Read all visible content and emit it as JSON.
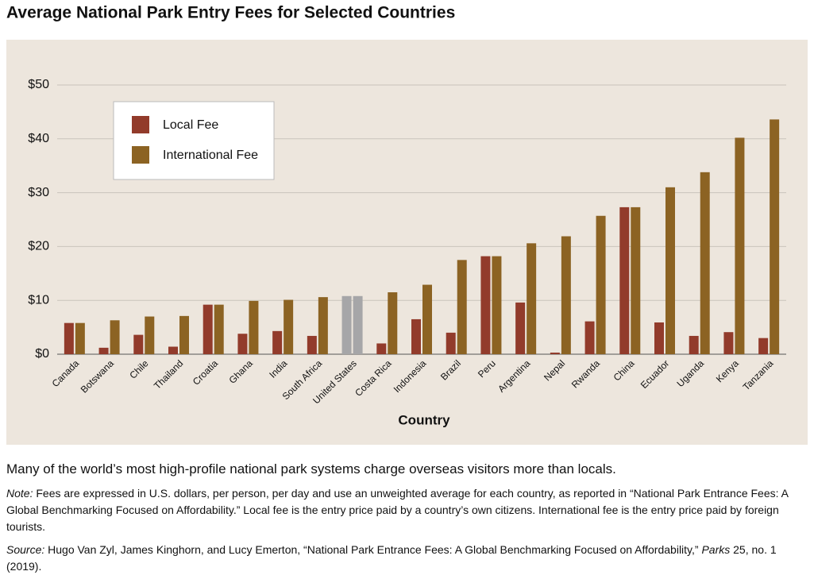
{
  "chart_data": {
    "type": "bar",
    "title": "Average National Park Entry Fees for Selected Countries",
    "x_label": "Country",
    "categories": [
      "Canada",
      "Botswana",
      "Chile",
      "Thailand",
      "Croatia",
      "Ghana",
      "India",
      "South Africa",
      "United States",
      "Costa Rica",
      "Indonesia",
      "Brazil",
      "Peru",
      "Argentina",
      "Nepal",
      "Rwanda",
      "China",
      "Ecuador",
      "Uganda",
      "Kenya",
      "Tanzania"
    ],
    "series": [
      {
        "name": "Local Fee",
        "color": "#923b2b",
        "colors": [
          "#923b2b",
          "#923b2b",
          "#923b2b",
          "#923b2b",
          "#923b2b",
          "#923b2b",
          "#923b2b",
          "#923b2b",
          "#a6a6a8",
          "#923b2b",
          "#923b2b",
          "#923b2b",
          "#923b2b",
          "#923b2b",
          "#923b2b",
          "#923b2b",
          "#923b2b",
          "#923b2b",
          "#923b2b",
          "#923b2b",
          "#923b2b"
        ],
        "values": [
          5.8,
          1.2,
          3.6,
          1.4,
          9.2,
          3.8,
          4.3,
          3.4,
          10.8,
          2.0,
          6.5,
          4.0,
          18.2,
          9.6,
          0.3,
          6.1,
          27.3,
          5.9,
          3.4,
          4.1,
          3.0
        ]
      },
      {
        "name": "International Fee",
        "color": "#8c6323",
        "colors": [
          "#8c6323",
          "#8c6323",
          "#8c6323",
          "#8c6323",
          "#8c6323",
          "#8c6323",
          "#8c6323",
          "#8c6323",
          "#a6a6a8",
          "#8c6323",
          "#8c6323",
          "#8c6323",
          "#8c6323",
          "#8c6323",
          "#8c6323",
          "#8c6323",
          "#8c6323",
          "#8c6323",
          "#8c6323",
          "#8c6323",
          "#8c6323"
        ],
        "values": [
          5.8,
          6.3,
          7.0,
          7.1,
          9.2,
          9.9,
          10.1,
          10.6,
          10.8,
          11.5,
          12.9,
          17.5,
          18.2,
          20.6,
          21.9,
          25.7,
          27.3,
          31.0,
          33.8,
          40.2,
          43.6
        ]
      }
    ],
    "ylim": [
      0,
      50
    ],
    "yticks": [
      {
        "value": 0,
        "label": "$0"
      },
      {
        "value": 10,
        "label": "$10"
      },
      {
        "value": 20,
        "label": "$20"
      },
      {
        "value": 30,
        "label": "$30"
      },
      {
        "value": 40,
        "label": "$40"
      },
      {
        "value": 50,
        "label": "$50"
      }
    ],
    "grid": true,
    "legend": "upper left"
  },
  "caption": "Many of the world’s most high-profile national park systems charge overseas visitors more than locals.",
  "note": {
    "label": "Note:",
    "text": " Fees are expressed in U.S. dollars, per person, per day and use an unweighted average for each country, as reported in “National Park Entrance Fees: A Global Benchmarking Focused on Affordability.” Local fee is the entry price paid by a country’s own citizens. International fee is the entry price paid by foreign tourists."
  },
  "source": {
    "label": "Source:",
    "text": " Hugo Van Zyl, James Kinghorn, and Lucy Emerton, “National Park Entrance Fees: A Global Benchmarking Focused on Affordability,” ",
    "journal": "Parks",
    "rest": " 25, no. 1 (2019)."
  }
}
